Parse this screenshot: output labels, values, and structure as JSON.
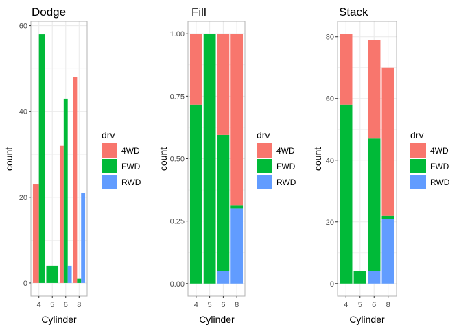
{
  "colors": {
    "4WD": "#F8766D",
    "FWD": "#00BA38",
    "RWD": "#619CFF",
    "grid": "#ebebeb",
    "panel_border": "#b3b3b3"
  },
  "chart_data": [
    {
      "type": "bar",
      "position": "dodge",
      "title": "Dodge",
      "xlabel": "Cylinder",
      "ylabel": "count",
      "categories": [
        "4",
        "5",
        "6",
        "8"
      ],
      "series": [
        {
          "name": "4WD",
          "values": [
            23,
            0,
            32,
            48
          ]
        },
        {
          "name": "FWD",
          "values": [
            58,
            4,
            43,
            1
          ]
        },
        {
          "name": "RWD",
          "values": [
            0,
            0,
            4,
            21
          ]
        }
      ],
      "ylim": [
        -3.05,
        61.05
      ],
      "yticks": [
        0,
        20,
        40,
        60
      ],
      "ytick_labels": [
        "0",
        "20",
        "40",
        "60"
      ],
      "legend": {
        "title": "drv",
        "labels": [
          "4WD",
          "FWD",
          "RWD"
        ],
        "placement": "right"
      },
      "grid": true
    },
    {
      "type": "bar",
      "position": "fill",
      "title": "Fill",
      "xlabel": "Cylinder",
      "ylabel": "count",
      "categories": [
        "4",
        "5",
        "6",
        "8"
      ],
      "series": [
        {
          "name": "4WD",
          "values": [
            0.284,
            0,
            0.405,
            0.686
          ]
        },
        {
          "name": "FWD",
          "values": [
            0.716,
            1.0,
            0.544,
            0.014
          ]
        },
        {
          "name": "RWD",
          "values": [
            0,
            0,
            0.051,
            0.3
          ]
        }
      ],
      "ylim": [
        -0.05,
        1.05
      ],
      "yticks": [
        0,
        0.25,
        0.5,
        0.75,
        1.0
      ],
      "ytick_labels": [
        "0.00",
        "0.25",
        "0.50",
        "0.75",
        "1.00"
      ],
      "legend": {
        "title": "drv",
        "labels": [
          "4WD",
          "FWD",
          "RWD"
        ],
        "placement": "right"
      },
      "grid": true
    },
    {
      "type": "bar",
      "position": "stack",
      "title": "Stack",
      "xlabel": "Cylinder",
      "ylabel": "count",
      "categories": [
        "4",
        "5",
        "6",
        "8"
      ],
      "series": [
        {
          "name": "4WD",
          "values": [
            23,
            0,
            32,
            48
          ]
        },
        {
          "name": "FWD",
          "values": [
            58,
            4,
            43,
            1
          ]
        },
        {
          "name": "RWD",
          "values": [
            0,
            0,
            4,
            21
          ]
        }
      ],
      "ylim": [
        -4.05,
        85.05
      ],
      "yticks": [
        0,
        20,
        40,
        60,
        80
      ],
      "ytick_labels": [
        "0",
        "20",
        "40",
        "60",
        "80"
      ],
      "legend": {
        "title": "drv",
        "labels": [
          "4WD",
          "FWD",
          "RWD"
        ],
        "placement": "right"
      },
      "grid": true
    }
  ]
}
